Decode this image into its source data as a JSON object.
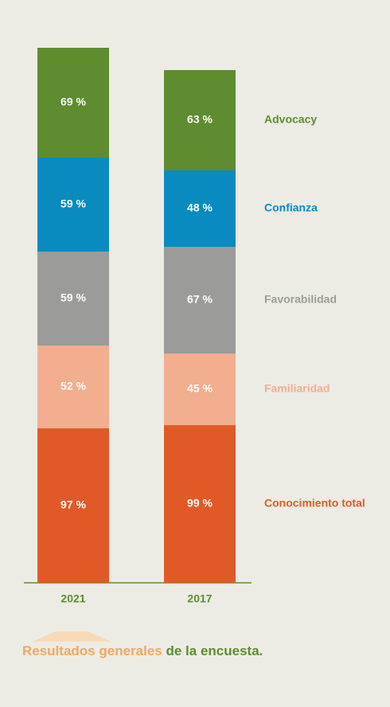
{
  "chart_data": {
    "type": "stacked_bar",
    "categories": [
      "2021",
      "2017"
    ],
    "series": [
      {
        "name": "Conocimiento total",
        "color": "#e05a28",
        "values": [
          97,
          99
        ],
        "value_labels": [
          "97 %",
          "99 %"
        ]
      },
      {
        "name": "Familiaridad",
        "color": "#f2ae8e",
        "values": [
          52,
          45
        ],
        "value_labels": [
          "52 %",
          "45 %"
        ]
      },
      {
        "name": "Favorabilidad",
        "color": "#9b9b99",
        "values": [
          59,
          67
        ],
        "value_labels": [
          "59 %",
          "67 %"
        ]
      },
      {
        "name": "Confianza",
        "color": "#0a8bbf",
        "values": [
          59,
          48
        ],
        "value_labels": [
          "59 %",
          "48 %"
        ]
      },
      {
        "name": "Advocacy",
        "color": "#5e8c2e",
        "values": [
          69,
          63
        ],
        "value_labels": [
          "69 %",
          "63 %"
        ]
      }
    ]
  },
  "caption": {
    "highlight": "Resultados generales",
    "rest": "de la encuesta."
  }
}
